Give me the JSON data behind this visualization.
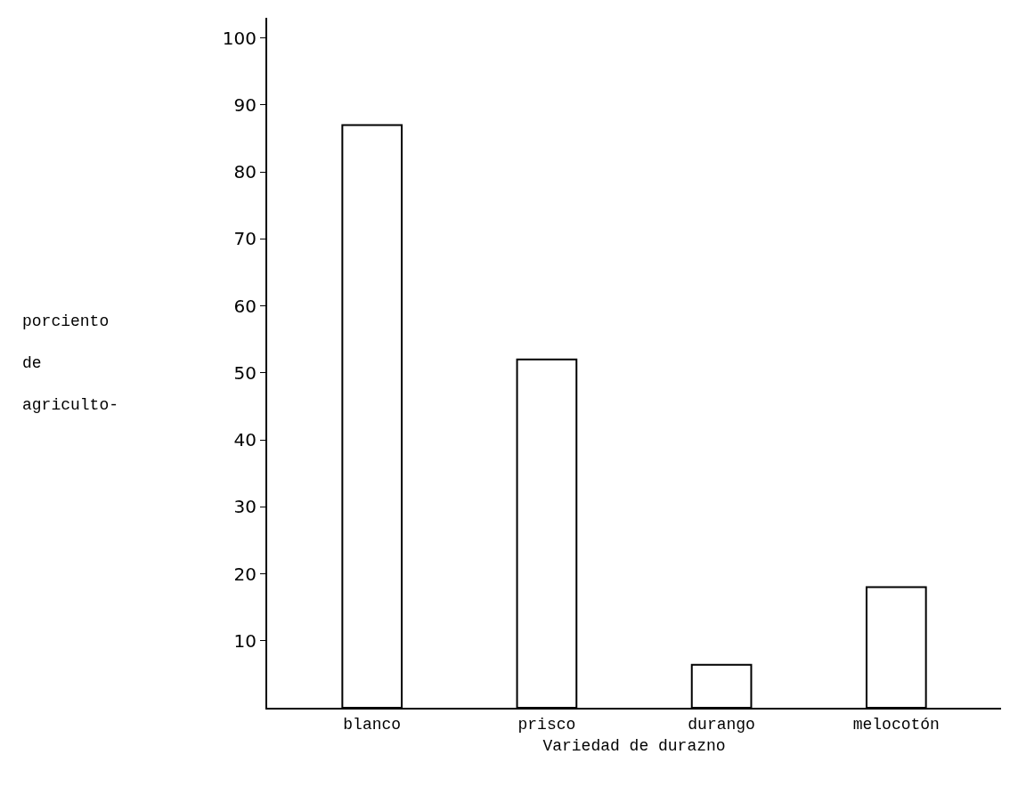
{
  "chart_data": {
    "type": "bar",
    "xlabel": "Variedad de durazno",
    "ylabel": "porciento\nde\nagriculto-",
    "categories": [
      "blanco",
      "prisco",
      "durango",
      "melocotón"
    ],
    "values": [
      87,
      52,
      6.4,
      18
    ],
    "colors": [
      "#ffffff",
      "#ffffff",
      "#ffffff",
      "#ffffff"
    ],
    "ylim": [
      0,
      103
    ],
    "yticks": [
      10,
      20,
      30,
      40,
      50,
      60,
      70,
      80,
      90,
      100
    ]
  }
}
